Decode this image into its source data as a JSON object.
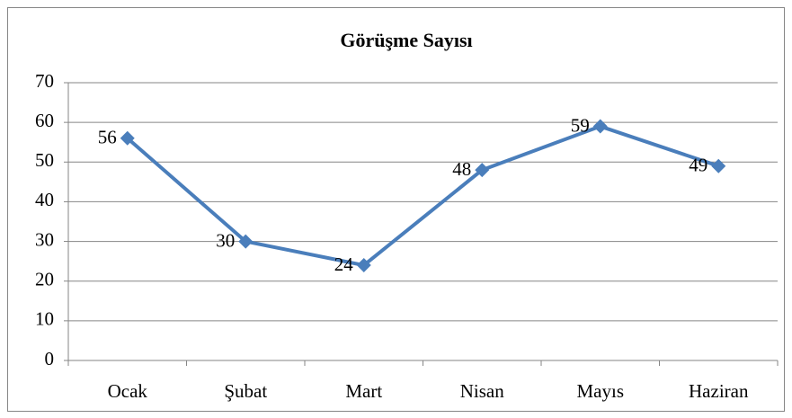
{
  "chart_data": {
    "type": "line",
    "title": "Görüşme Sayısı",
    "categories": [
      "Ocak",
      "Şubat",
      "Mart",
      "Nisan",
      "Mayıs",
      "Haziran"
    ],
    "series": [
      {
        "name": "Görüşme Sayısı",
        "color": "#4a7ebb",
        "values": [
          56,
          30,
          24,
          48,
          59,
          49
        ]
      }
    ],
    "ylim": [
      0,
      70
    ],
    "yticks": [
      0,
      10,
      20,
      30,
      40,
      50,
      60,
      70
    ],
    "grid": true,
    "data_labels": true
  }
}
